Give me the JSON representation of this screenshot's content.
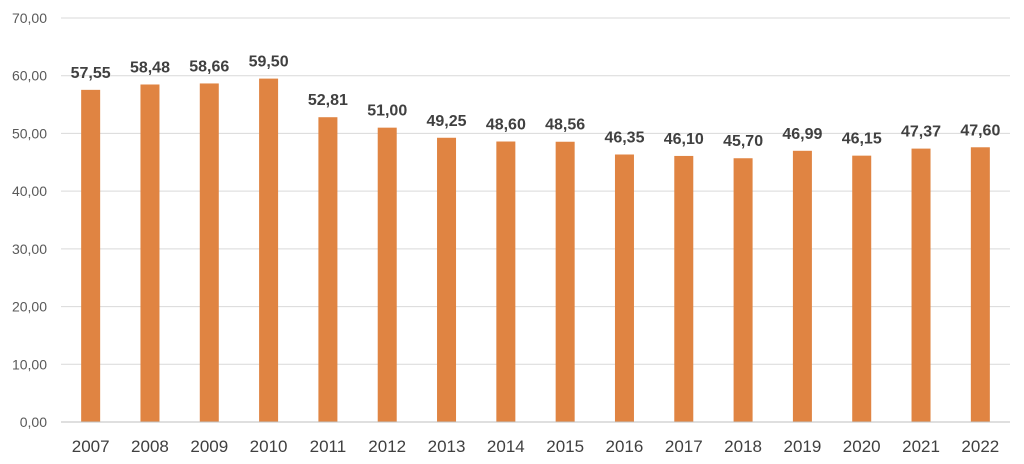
{
  "chart_data": {
    "type": "bar",
    "title": "",
    "xlabel": "",
    "ylabel": "",
    "categories": [
      "2007",
      "2008",
      "2009",
      "2010",
      "2011",
      "2012",
      "2013",
      "2014",
      "2015",
      "2016",
      "2017",
      "2018",
      "2019",
      "2020",
      "2021",
      "2022"
    ],
    "values": [
      57.55,
      58.48,
      58.66,
      59.5,
      52.81,
      51.0,
      49.25,
      48.6,
      48.56,
      46.35,
      46.1,
      45.7,
      46.99,
      46.15,
      47.37,
      47.6
    ],
    "value_labels": [
      "57,55",
      "58,48",
      "58,66",
      "59,50",
      "52,81",
      "51,00",
      "49,25",
      "48,60",
      "48,56",
      "46,35",
      "46,10",
      "45,70",
      "46,99",
      "46,15",
      "47,37",
      "47,60"
    ],
    "ylim": [
      0,
      70
    ],
    "yticks": [
      0,
      10,
      20,
      30,
      40,
      50,
      60,
      70
    ],
    "ytick_labels": [
      "0,00",
      "10,00",
      "20,00",
      "30,00",
      "40,00",
      "50,00",
      "60,00",
      "70,00"
    ],
    "grid": true,
    "legend": "none",
    "bar_color": "#E08442"
  }
}
